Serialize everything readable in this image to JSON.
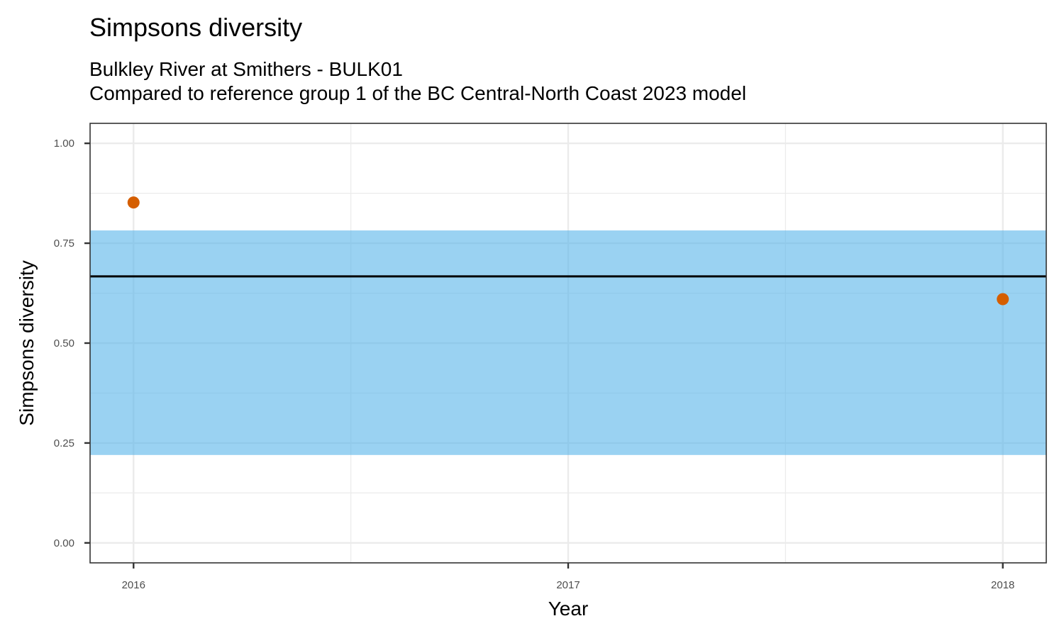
{
  "header": {
    "title": "Simpsons diversity",
    "subtitle_line1": "Bulkley River at Smithers - BULK01",
    "subtitle_line2": "Compared to reference group 1 of the BC Central-North Coast 2023 model"
  },
  "chart_data": {
    "type": "scatter",
    "xlabel": "Year",
    "ylabel": "Simpsons diversity",
    "x_ticks": [
      2016,
      2017,
      2018
    ],
    "x_tick_labels": [
      "2016",
      "2017",
      "2018"
    ],
    "y_ticks": [
      0,
      0.25,
      0.5,
      0.75,
      1.0
    ],
    "y_tick_labels": [
      "0.00",
      "0.25",
      "0.50",
      "0.75",
      "1.00"
    ],
    "xlim": [
      2015.9,
      2018.1
    ],
    "ylim": [
      -0.05,
      1.05
    ],
    "grid": true,
    "points": [
      {
        "x": 2016,
        "y": 0.852
      },
      {
        "x": 2018,
        "y": 0.61
      }
    ],
    "reference_band": {
      "ymin": 0.22,
      "ymax": 0.782
    },
    "reference_line": {
      "y": 0.667
    },
    "colors": {
      "points": "#D55E00",
      "band": "#56B4E9",
      "line": "#000000",
      "grid": "#ebebeb",
      "panel_border": "#333333"
    }
  }
}
